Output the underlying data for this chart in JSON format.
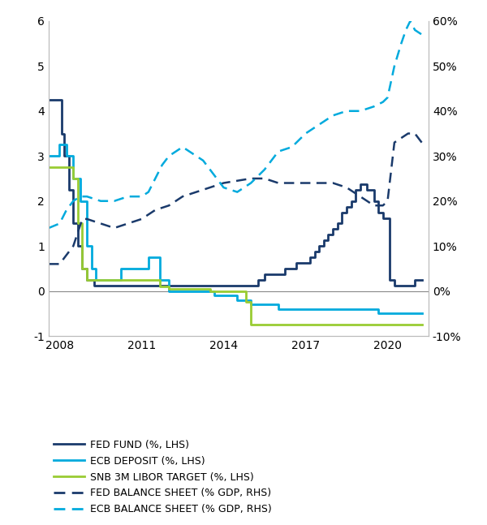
{
  "lhs_ylim": [
    -1,
    6
  ],
  "rhs_ylim": [
    -10,
    60
  ],
  "lhs_yticks": [
    -1,
    0,
    1,
    2,
    3,
    4,
    5,
    6
  ],
  "rhs_yticks": [
    -10,
    0,
    10,
    20,
    30,
    40,
    50,
    60
  ],
  "rhs_yticklabels": [
    "-10%",
    "0%",
    "10%",
    "20%",
    "30%",
    "40%",
    "50%",
    "60%"
  ],
  "lhs_yticklabels": [
    "-1",
    "0",
    "1",
    "2",
    "3",
    "4",
    "5",
    "6"
  ],
  "xlim_start": 2007.6,
  "xlim_end": 2021.5,
  "xticks": [
    2008,
    2011,
    2014,
    2017,
    2020
  ],
  "fed_fund": {
    "dates": [
      2007.6,
      2008.0,
      2008.08,
      2008.17,
      2008.33,
      2008.5,
      2008.67,
      2008.83,
      2009.0,
      2009.25,
      2010.0,
      2011.0,
      2012.0,
      2013.0,
      2014.0,
      2015.0,
      2015.25,
      2015.5,
      2015.75,
      2016.0,
      2016.25,
      2016.5,
      2016.67,
      2016.83,
      2017.0,
      2017.17,
      2017.33,
      2017.5,
      2017.67,
      2017.83,
      2018.0,
      2018.17,
      2018.33,
      2018.5,
      2018.67,
      2018.83,
      2019.0,
      2019.25,
      2019.5,
      2019.67,
      2019.83,
      2020.0,
      2020.08,
      2020.25,
      2020.5,
      2020.75,
      2021.0,
      2021.25
    ],
    "values": [
      4.25,
      4.25,
      3.5,
      3.0,
      2.25,
      1.5,
      1.0,
      0.5,
      0.25,
      0.125,
      0.125,
      0.125,
      0.125,
      0.125,
      0.125,
      0.125,
      0.25,
      0.375,
      0.375,
      0.375,
      0.5,
      0.5,
      0.625,
      0.625,
      0.625,
      0.75,
      0.875,
      1.0,
      1.125,
      1.25,
      1.375,
      1.5,
      1.75,
      1.875,
      2.0,
      2.25,
      2.375,
      2.25,
      2.0,
      1.75,
      1.625,
      1.625,
      0.25,
      0.125,
      0.125,
      0.125,
      0.25,
      0.25
    ],
    "color": "#1a3a6b",
    "linewidth": 2.0,
    "label": "FED FUND (%, LHS)"
  },
  "ecb_deposit": {
    "dates": [
      2007.6,
      2008.0,
      2008.25,
      2008.5,
      2008.75,
      2009.0,
      2009.17,
      2009.33,
      2009.5,
      2010.0,
      2010.25,
      2011.0,
      2011.25,
      2011.5,
      2011.67,
      2012.0,
      2012.08,
      2012.25,
      2012.5,
      2013.5,
      2013.67,
      2014.0,
      2014.17,
      2014.5,
      2014.67,
      2015.0,
      2016.0,
      2019.5,
      2019.67,
      2020.0,
      2021.25
    ],
    "values": [
      3.0,
      3.25,
      3.0,
      2.5,
      2.0,
      1.0,
      0.5,
      0.25,
      0.25,
      0.25,
      0.5,
      0.5,
      0.75,
      0.75,
      0.25,
      0.0,
      0.0,
      0.0,
      0.0,
      0.0,
      -0.1,
      -0.1,
      -0.1,
      -0.2,
      -0.2,
      -0.3,
      -0.4,
      -0.4,
      -0.5,
      -0.5,
      -0.5
    ],
    "color": "#00aadd",
    "linewidth": 2.0,
    "label": "ECB DEPOSIT (%, LHS)"
  },
  "snb_libor": {
    "dates": [
      2007.6,
      2008.0,
      2008.25,
      2008.5,
      2008.67,
      2008.83,
      2009.0,
      2009.17,
      2010.0,
      2011.0,
      2011.5,
      2011.67,
      2012.0,
      2013.0,
      2013.5,
      2014.0,
      2014.67,
      2014.83,
      2015.0,
      2016.0,
      2017.0,
      2018.0,
      2019.0,
      2019.5,
      2020.0,
      2021.25
    ],
    "values": [
      2.75,
      2.75,
      2.75,
      2.5,
      1.5,
      0.5,
      0.25,
      0.25,
      0.25,
      0.25,
      0.25,
      0.1,
      0.05,
      0.05,
      0.0,
      0.0,
      0.0,
      -0.25,
      -0.75,
      -0.75,
      -0.75,
      -0.75,
      -0.75,
      -0.75,
      -0.75,
      -0.75
    ],
    "color": "#99cc33",
    "linewidth": 2.0,
    "label": "SNB 3M LIBOR TARGET (%, LHS)"
  },
  "fed_balance": {
    "dates": [
      2007.6,
      2008.0,
      2008.5,
      2008.83,
      2009.0,
      2009.25,
      2009.5,
      2009.75,
      2010.0,
      2010.5,
      2011.0,
      2011.5,
      2012.0,
      2012.5,
      2013.0,
      2013.5,
      2014.0,
      2014.5,
      2015.0,
      2015.5,
      2016.0,
      2016.5,
      2017.0,
      2017.5,
      2018.0,
      2018.5,
      2019.0,
      2019.5,
      2019.83,
      2020.0,
      2020.25,
      2020.5,
      2020.75,
      2021.0,
      2021.25
    ],
    "values_rhs": [
      6,
      6,
      10,
      16,
      16,
      15.5,
      15,
      14.5,
      14,
      15,
      16,
      18,
      19,
      21,
      22,
      23,
      24,
      24.5,
      25,
      25,
      24,
      24,
      24,
      24,
      24,
      23,
      21,
      19,
      19,
      20,
      33,
      34,
      35,
      35,
      33
    ],
    "color": "#1a3a6b",
    "linewidth": 1.8,
    "linestyle": "--",
    "label": "FED BALANCE SHEET (% GDP, RHS)"
  },
  "ecb_balance": {
    "dates": [
      2007.6,
      2008.0,
      2008.25,
      2008.5,
      2008.75,
      2009.0,
      2009.5,
      2010.0,
      2010.5,
      2011.0,
      2011.25,
      2011.5,
      2011.75,
      2012.0,
      2012.25,
      2012.5,
      2012.75,
      2013.0,
      2013.25,
      2013.5,
      2013.75,
      2014.0,
      2014.5,
      2015.0,
      2015.5,
      2016.0,
      2016.5,
      2017.0,
      2017.5,
      2018.0,
      2018.5,
      2019.0,
      2019.5,
      2019.83,
      2020.0,
      2020.25,
      2020.5,
      2020.67,
      2020.83,
      2021.0,
      2021.25
    ],
    "values_rhs": [
      14,
      15,
      18,
      20,
      21,
      21,
      20,
      20,
      21,
      21,
      22,
      25,
      28,
      30,
      31,
      32,
      31,
      30,
      29,
      27,
      25,
      23,
      22,
      24,
      27,
      31,
      32,
      35,
      37,
      39,
      40,
      40,
      41,
      42,
      43,
      50,
      55,
      58,
      60,
      58,
      57
    ],
    "color": "#00aadd",
    "linewidth": 1.8,
    "linestyle": "--",
    "label": "ECB BALANCE SHEET (% GDP, RHS)"
  },
  "legend_fontsize": 9,
  "tick_fontsize": 10,
  "bg_color": "#ffffff",
  "spine_color": "#bbbbbb"
}
